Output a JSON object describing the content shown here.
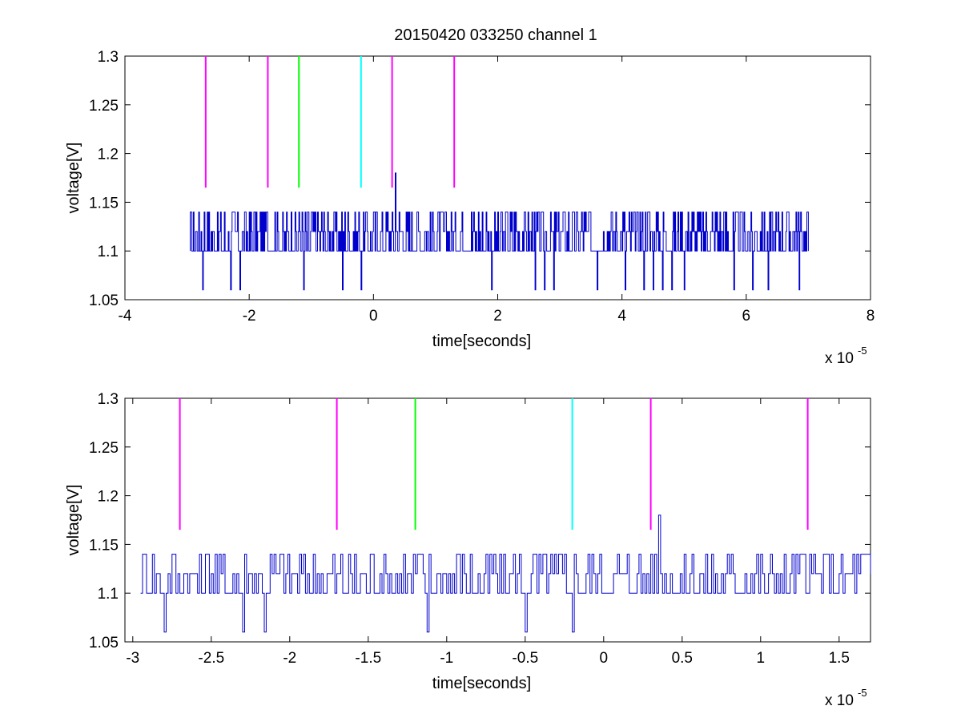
{
  "figure": {
    "title": "20150420 033250 channel 1"
  },
  "chart_data": [
    {
      "type": "line",
      "title": "20150420 033250 channel 1",
      "xlabel": "time[seconds]",
      "ylabel": "voltage[V]",
      "x_multiplier": "x 10",
      "x_exponent": "-5",
      "xlim": [
        -4,
        8
      ],
      "ylim": [
        1.05,
        1.3
      ],
      "xticks": [
        "-4",
        "-2",
        "0",
        "2",
        "4",
        "6",
        "8"
      ],
      "yticks": [
        "1.05",
        "1.1",
        "1.15",
        "1.2",
        "1.25",
        "1.3"
      ],
      "grid": false,
      "signal": {
        "color": "#0000cc",
        "baseline": 1.1,
        "levels": [
          1.06,
          1.1,
          1.12,
          1.14,
          1.18
        ],
        "x_range": [
          -2.95,
          7.0
        ],
        "peak": {
          "x": 0.35,
          "y": 1.18
        },
        "dips_to_1_06": [
          -2.75,
          -2.3,
          -2.15,
          -1.12,
          -0.5,
          -0.2,
          1.9,
          2.6,
          2.75,
          2.9,
          3.6,
          4.05,
          4.35,
          4.5,
          4.65,
          4.8,
          5.0,
          5.8,
          6.1,
          6.35,
          6.85
        ]
      },
      "markers": [
        {
          "x": -2.7,
          "y_range": [
            1.165,
            1.3
          ],
          "color": "#ff00ff"
        },
        {
          "x": -1.7,
          "y_range": [
            1.165,
            1.3
          ],
          "color": "#ff00ff"
        },
        {
          "x": -1.2,
          "y_range": [
            1.165,
            1.3
          ],
          "color": "#00ff00"
        },
        {
          "x": -0.2,
          "y_range": [
            1.165,
            1.3
          ],
          "color": "#00ffff"
        },
        {
          "x": 0.3,
          "y_range": [
            1.165,
            1.3
          ],
          "color": "#ff00ff"
        },
        {
          "x": 1.3,
          "y_range": [
            1.165,
            1.3
          ],
          "color": "#ff00ff"
        }
      ]
    },
    {
      "type": "line",
      "title": "",
      "xlabel": "time[seconds]",
      "ylabel": "voltage[V]",
      "x_multiplier": "x 10",
      "x_exponent": "-5",
      "xlim": [
        -3.05,
        1.7
      ],
      "ylim": [
        1.05,
        1.3
      ],
      "xticks": [
        "-3",
        "-2.5",
        "-2",
        "-1.5",
        "-1",
        "-0.5",
        "0",
        "0.5",
        "1",
        "1.5"
      ],
      "yticks": [
        "1.05",
        "1.1",
        "1.15",
        "1.2",
        "1.25",
        "1.3"
      ],
      "grid": false,
      "signal": {
        "color": "#0000cc",
        "baseline": 1.1,
        "levels": [
          1.06,
          1.1,
          1.12,
          1.14,
          1.18
        ],
        "x_range": [
          -2.95,
          1.7
        ],
        "peak": {
          "x": 0.35,
          "y": 1.18
        },
        "dips_to_1_06": [
          -2.8,
          -2.3,
          -2.16,
          -1.12,
          -0.5,
          -0.2
        ]
      },
      "markers": [
        {
          "x": -2.7,
          "y_range": [
            1.165,
            1.3
          ],
          "color": "#ff00ff"
        },
        {
          "x": -1.7,
          "y_range": [
            1.165,
            1.3
          ],
          "color": "#ff00ff"
        },
        {
          "x": -1.2,
          "y_range": [
            1.165,
            1.3
          ],
          "color": "#00ff00"
        },
        {
          "x": -0.2,
          "y_range": [
            1.165,
            1.3
          ],
          "color": "#00ffff"
        },
        {
          "x": 0.3,
          "y_range": [
            1.165,
            1.3
          ],
          "color": "#ff00ff"
        },
        {
          "x": 1.3,
          "y_range": [
            1.165,
            1.3
          ],
          "color": "#ff00ff"
        }
      ]
    }
  ]
}
